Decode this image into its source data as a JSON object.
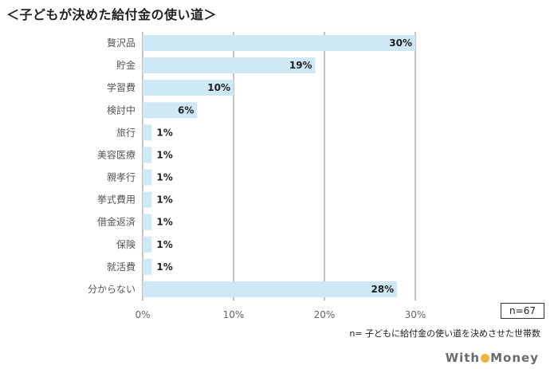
{
  "title": "＜子どもが決めた給付金の使い道＞",
  "sample_label": "n=67",
  "note": "n= 子どもに給付金の使い道を決めさせた世帯数",
  "logo": {
    "part1": "With",
    "part2": "Money",
    "accent_color": "#f0b43a"
  },
  "colors": {
    "bar": "#cfe8f5",
    "grid": "#888888",
    "axis_text": "#666666",
    "category_text": "#555555"
  },
  "chart_data": {
    "type": "bar",
    "orientation": "horizontal",
    "categories": [
      "贅沢品",
      "貯金",
      "学習費",
      "検討中",
      "旅行",
      "美容医療",
      "親孝行",
      "挙式費用",
      "借金返済",
      "保険",
      "就活費",
      "分からない"
    ],
    "values": [
      30,
      19,
      10,
      6,
      1,
      1,
      1,
      1,
      1,
      1,
      1,
      28
    ],
    "value_labels": [
      "30%",
      "19%",
      "10%",
      "6%",
      "1%",
      "1%",
      "1%",
      "1%",
      "1%",
      "1%",
      "1%",
      "28%"
    ],
    "x_ticks": [
      0,
      10,
      20,
      30
    ],
    "x_tick_labels": [
      "0%",
      "10%",
      "20%",
      "30%"
    ],
    "xlim": [
      0,
      30
    ],
    "grid": true,
    "title": "＜子どもが決めた給付金の使い道＞"
  }
}
